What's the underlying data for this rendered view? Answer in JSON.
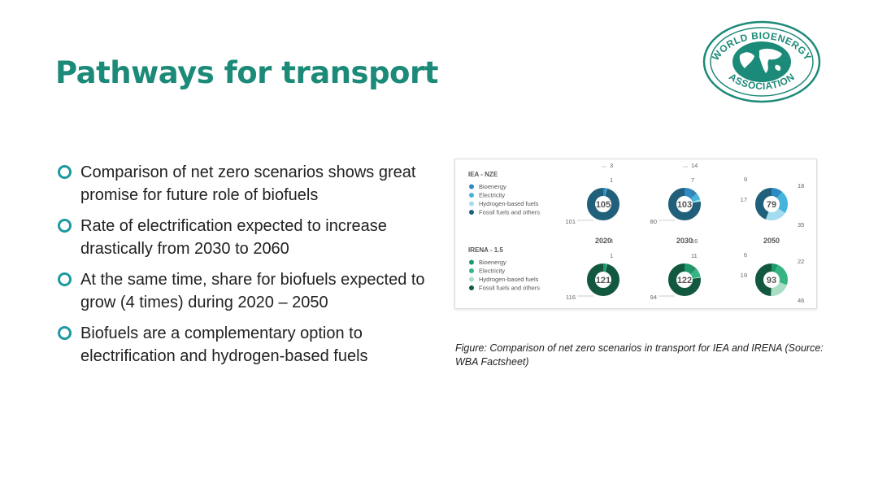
{
  "title": "Pathways for transport",
  "logo": {
    "top_text": "WORLD BIOENERGY",
    "bottom_text": "ASSOCIATION",
    "color": "#1c8a78"
  },
  "bullets": [
    "Comparison of net zero scenarios shows great promise for future role of biofuels",
    "Rate of electrification expected to increase drastically from 2030 to 2060",
    "At the same time, share for biofuels expected to grow (4 times) during 2020 – 2050",
    "Biofuels are a complementary option to electrification and hydrogen-based fuels"
  ],
  "figure": {
    "years": [
      "2020",
      "2030",
      "2050"
    ],
    "scenarios": [
      {
        "name": "IEA - NZE",
        "legend": [
          "Bioenergy",
          "Electricity",
          "Hydrogen-based fuels",
          "Fossil fuels and others"
        ],
        "colors": [
          "#2d8ac2",
          "#45b4dc",
          "#a4dcef",
          "#20607a"
        ],
        "donuts": [
          {
            "total": "105",
            "parts": [
              3,
              1,
              0,
              101
            ],
            "labels": [
              "3",
              "1",
              "101"
            ]
          },
          {
            "total": "103",
            "parts": [
              14,
              7,
              2,
              80
            ],
            "labels": [
              "14",
              "7",
              "2",
              "80"
            ]
          },
          {
            "total": "79",
            "parts": [
              9,
              18,
              17,
              35
            ],
            "labels": [
              "9",
              "18",
              "17",
              "35"
            ]
          }
        ]
      },
      {
        "name": "IRENA - 1.5",
        "legend": [
          "Bioenergy",
          "Electricity",
          "Hydrogen-based fuels",
          "Fossil fuels and others"
        ],
        "colors": [
          "#1b9a6a",
          "#36b583",
          "#a8dec3",
          "#12583f"
        ],
        "donuts": [
          {
            "total": "121",
            "parts": [
              4,
              1,
              0,
              116
            ],
            "labels": [
              "4",
              "1",
              "116"
            ]
          },
          {
            "total": "122",
            "parts": [
              16,
              11,
              1,
              94
            ],
            "labels": [
              "16",
              "11",
              "1",
              "94"
            ]
          },
          {
            "total": "93",
            "parts": [
              6,
              22,
              19,
              46
            ],
            "labels": [
              "6",
              "22",
              "19",
              "46"
            ]
          }
        ]
      }
    ]
  },
  "caption": "Figure: Comparison of net zero scenarios in transport for IEA and IRENA (Source: WBA Factsheet)"
}
